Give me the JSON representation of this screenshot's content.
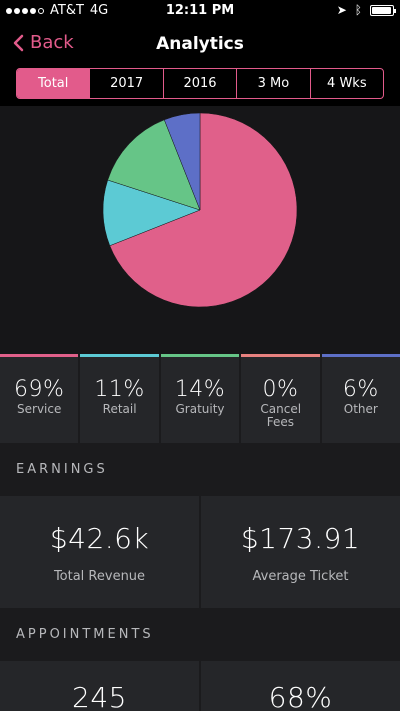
{
  "status_bar": {
    "carrier": "AT&T",
    "network": "4G",
    "time": "12:11 PM",
    "battery_level": 0.95
  },
  "nav": {
    "back_label": "Back",
    "title": "Analytics"
  },
  "segments": [
    {
      "label": "Total",
      "active": true
    },
    {
      "label": "2017",
      "active": false
    },
    {
      "label": "2016",
      "active": false
    },
    {
      "label": "3 Mo",
      "active": false
    },
    {
      "label": "4 Wks",
      "active": false
    }
  ],
  "colors": {
    "accent": "#e25b8b",
    "service": "#e0608a",
    "retail": "#5ccad4",
    "gratuity": "#66c587",
    "cancel_fees": "#e7817f",
    "other": "#5d6fc7"
  },
  "chart_data": {
    "type": "pie",
    "slices": [
      {
        "name": "Service",
        "value": 69,
        "color": "#e0608a"
      },
      {
        "name": "Retail",
        "value": 11,
        "color": "#5ccad4"
      },
      {
        "name": "Gratuity",
        "value": 14,
        "color": "#66c587"
      },
      {
        "name": "Cancel Fees",
        "value": 0,
        "color": "#e7817f"
      },
      {
        "name": "Other",
        "value": 6,
        "color": "#5d6fc7"
      }
    ]
  },
  "breakdown": [
    {
      "value": "69%",
      "label": "Service"
    },
    {
      "value": "11%",
      "label": "Retail"
    },
    {
      "value": "14%",
      "label": "Gratuity"
    },
    {
      "value": "0%",
      "label": "Cancel Fees"
    },
    {
      "value": "6%",
      "label": "Other"
    }
  ],
  "earnings": {
    "header": "EARNINGS",
    "total_revenue": {
      "value": "$42.6k",
      "label": "Total Revenue"
    },
    "average_ticket": {
      "value": "$173.91",
      "label": "Average Ticket"
    }
  },
  "appointments": {
    "header": "APPOINTMENTS",
    "left_value": "245",
    "right_value": "68%"
  }
}
